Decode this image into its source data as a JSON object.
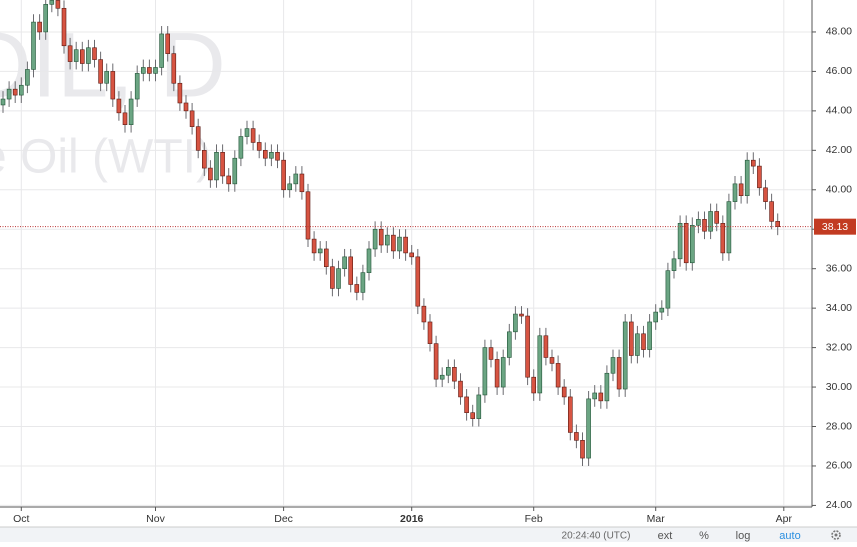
{
  "chart_data": {
    "type": "candlestick",
    "watermark": [
      "OIL, D",
      "e Oil (WTI)"
    ],
    "up_color": "#6ba583",
    "down_color": "#d75442",
    "open": [
      44.3,
      44.6,
      45.1,
      44.8,
      45.3,
      46.1,
      48.5,
      48.0,
      49.4,
      49.6,
      49.2,
      47.3,
      46.5,
      47.1,
      46.4,
      47.2,
      46.6,
      45.4,
      46.0,
      44.6,
      43.9,
      43.3,
      44.6,
      45.9,
      46.2,
      45.9,
      46.2,
      47.9,
      46.9,
      45.4,
      44.4,
      44.0,
      43.2,
      42.0,
      41.1,
      40.5,
      41.9,
      40.7,
      40.3,
      41.6,
      42.7,
      43.1,
      42.4,
      42.0,
      41.6,
      41.9,
      41.5,
      40.0,
      40.3,
      40.8,
      39.9,
      37.5,
      36.8,
      37.0,
      36.1,
      35.0,
      36.0,
      36.6,
      35.2,
      34.8,
      35.8,
      37.0,
      38.0,
      37.2,
      37.7,
      36.9,
      37.6,
      36.8,
      36.6,
      34.1,
      33.3,
      32.2,
      30.4,
      30.6,
      31.0,
      30.3,
      29.5,
      28.7,
      28.4,
      29.6,
      32.0,
      31.4,
      30.0,
      31.5,
      32.8,
      33.7,
      33.6,
      30.5,
      29.7,
      32.6,
      31.5,
      31.2,
      30.0,
      29.5,
      27.7,
      27.3,
      26.4,
      29.4,
      29.7,
      29.3,
      30.7,
      31.5,
      29.9,
      33.3,
      31.6,
      32.7,
      31.9,
      33.3,
      33.8,
      34.0,
      35.9,
      36.5,
      38.3,
      36.3,
      38.2,
      38.5,
      37.9,
      38.9,
      38.3,
      36.8,
      39.4,
      40.3,
      39.7,
      41.5,
      41.2,
      40.1,
      39.4,
      38.4
    ],
    "high": [
      45.0,
      45.5,
      45.5,
      45.7,
      46.5,
      48.9,
      48.9,
      49.8,
      50.0,
      50.0,
      49.6,
      47.7,
      47.5,
      47.5,
      47.6,
      47.6,
      47.0,
      46.4,
      46.4,
      45.0,
      44.3,
      45.0,
      46.3,
      46.6,
      46.6,
      46.6,
      48.3,
      48.3,
      47.3,
      45.8,
      44.8,
      44.4,
      43.6,
      42.4,
      41.5,
      42.3,
      42.3,
      41.1,
      42.0,
      43.1,
      43.5,
      43.5,
      42.8,
      42.4,
      42.3,
      42.3,
      41.9,
      40.7,
      41.2,
      41.2,
      40.3,
      37.9,
      37.4,
      37.4,
      36.5,
      36.4,
      37.0,
      37.0,
      35.6,
      36.2,
      37.4,
      38.4,
      38.4,
      38.1,
      38.1,
      38.0,
      38.0,
      37.2,
      37.0,
      34.5,
      33.7,
      32.6,
      31.0,
      31.4,
      31.4,
      30.7,
      29.9,
      29.1,
      30.0,
      32.4,
      32.4,
      31.8,
      31.9,
      33.2,
      34.1,
      34.1,
      34.0,
      30.9,
      33.0,
      33.0,
      31.9,
      31.6,
      30.4,
      29.9,
      28.1,
      27.7,
      29.8,
      30.1,
      30.1,
      31.1,
      31.9,
      31.9,
      33.7,
      33.7,
      33.1,
      33.1,
      33.7,
      34.2,
      34.4,
      36.3,
      36.9,
      38.7,
      38.7,
      38.6,
      38.9,
      38.9,
      39.3,
      39.3,
      38.7,
      39.8,
      40.7,
      40.7,
      41.9,
      41.9,
      41.6,
      40.5,
      39.8,
      38.8
    ],
    "low": [
      43.9,
      44.2,
      44.4,
      44.4,
      44.9,
      45.7,
      47.6,
      47.6,
      49.0,
      48.8,
      46.9,
      46.1,
      46.1,
      46.0,
      46.0,
      46.2,
      45.0,
      45.0,
      44.2,
      43.5,
      42.9,
      42.9,
      44.2,
      45.5,
      45.5,
      45.5,
      45.8,
      46.5,
      45.0,
      44.0,
      43.6,
      42.8,
      41.6,
      40.7,
      40.1,
      40.1,
      40.3,
      39.9,
      39.9,
      41.2,
      42.3,
      42.0,
      41.6,
      41.2,
      41.2,
      41.1,
      39.6,
      39.6,
      39.9,
      39.5,
      37.1,
      36.4,
      36.4,
      35.7,
      34.6,
      34.6,
      35.6,
      34.8,
      34.4,
      34.4,
      35.4,
      36.6,
      36.8,
      36.8,
      36.5,
      36.5,
      36.4,
      36.2,
      33.7,
      32.9,
      31.8,
      30.0,
      30.0,
      30.2,
      29.9,
      29.1,
      28.3,
      28.0,
      28.0,
      29.2,
      31.0,
      29.6,
      29.6,
      31.1,
      32.4,
      33.2,
      30.1,
      29.3,
      29.3,
      31.1,
      30.8,
      29.6,
      29.1,
      27.3,
      26.9,
      26.0,
      26.0,
      29.0,
      28.9,
      28.9,
      30.3,
      29.5,
      29.5,
      31.2,
      31.2,
      31.5,
      31.5,
      32.9,
      33.4,
      33.6,
      35.5,
      36.1,
      35.9,
      35.9,
      37.8,
      37.5,
      37.5,
      37.9,
      36.4,
      36.4,
      39.0,
      39.3,
      39.3,
      40.8,
      39.7,
      39.0,
      38.0,
      37.7
    ],
    "close": [
      44.6,
      45.1,
      44.8,
      45.3,
      46.1,
      48.5,
      48.0,
      49.4,
      49.6,
      49.2,
      47.3,
      46.5,
      47.1,
      46.4,
      47.2,
      46.6,
      45.4,
      46.0,
      44.6,
      43.9,
      43.3,
      44.6,
      45.9,
      46.2,
      45.9,
      46.2,
      47.9,
      46.9,
      45.4,
      44.4,
      44.0,
      43.2,
      42.0,
      41.1,
      40.5,
      41.9,
      40.7,
      40.3,
      41.6,
      42.7,
      43.1,
      42.4,
      42.0,
      41.6,
      41.9,
      41.5,
      40.0,
      40.3,
      40.8,
      39.9,
      37.5,
      36.8,
      37.0,
      36.1,
      35.0,
      36.0,
      36.6,
      35.2,
      34.8,
      35.8,
      37.0,
      38.0,
      37.2,
      37.7,
      36.9,
      37.6,
      36.8,
      36.6,
      34.1,
      33.3,
      32.2,
      30.4,
      30.6,
      31.0,
      30.3,
      29.5,
      28.7,
      28.4,
      29.6,
      32.0,
      31.4,
      30.0,
      31.5,
      32.8,
      33.7,
      33.6,
      30.5,
      29.7,
      32.6,
      31.5,
      31.2,
      30.0,
      29.5,
      27.7,
      27.3,
      26.4,
      29.4,
      29.7,
      29.3,
      30.7,
      31.5,
      29.9,
      33.3,
      31.6,
      32.7,
      31.9,
      33.3,
      33.8,
      34.0,
      35.9,
      36.5,
      38.3,
      36.3,
      38.2,
      38.5,
      37.9,
      38.9,
      38.3,
      36.8,
      39.4,
      40.3,
      39.7,
      41.5,
      41.2,
      40.1,
      39.4,
      38.4,
      38.13
    ],
    "xticks": [
      {
        "value": 3,
        "label": "Oct"
      },
      {
        "value": 25,
        "label": "Nov"
      },
      {
        "value": 46,
        "label": "Dec"
      },
      {
        "value": 67,
        "label": "2016"
      },
      {
        "value": 87,
        "label": "Feb"
      },
      {
        "value": 107,
        "label": "Mar"
      },
      {
        "value": 128,
        "label": "Apr"
      }
    ],
    "ylim": [
      23.92,
      49.62
    ],
    "yticks": [
      {
        "value": 24,
        "label": "24.00"
      },
      {
        "value": 26,
        "label": "26.00"
      },
      {
        "value": 28,
        "label": "28.00"
      },
      {
        "value": 30,
        "label": "30.00"
      },
      {
        "value": 32,
        "label": "32.00"
      },
      {
        "value": 34,
        "label": "34.00"
      },
      {
        "value": 36,
        "label": "36.00"
      },
      {
        "value": 38,
        "label": "38.00"
      },
      {
        "value": 40,
        "label": "40.00"
      },
      {
        "value": 42,
        "label": "42.00"
      },
      {
        "value": 44,
        "label": "44.00"
      },
      {
        "value": 46,
        "label": "46.00"
      },
      {
        "value": 48,
        "label": "48.00"
      }
    ],
    "grid": true
  },
  "toolbar": {
    "time": "20:24:40 (UTC)",
    "buttons": [
      "ext",
      "%",
      "log",
      "auto"
    ]
  }
}
